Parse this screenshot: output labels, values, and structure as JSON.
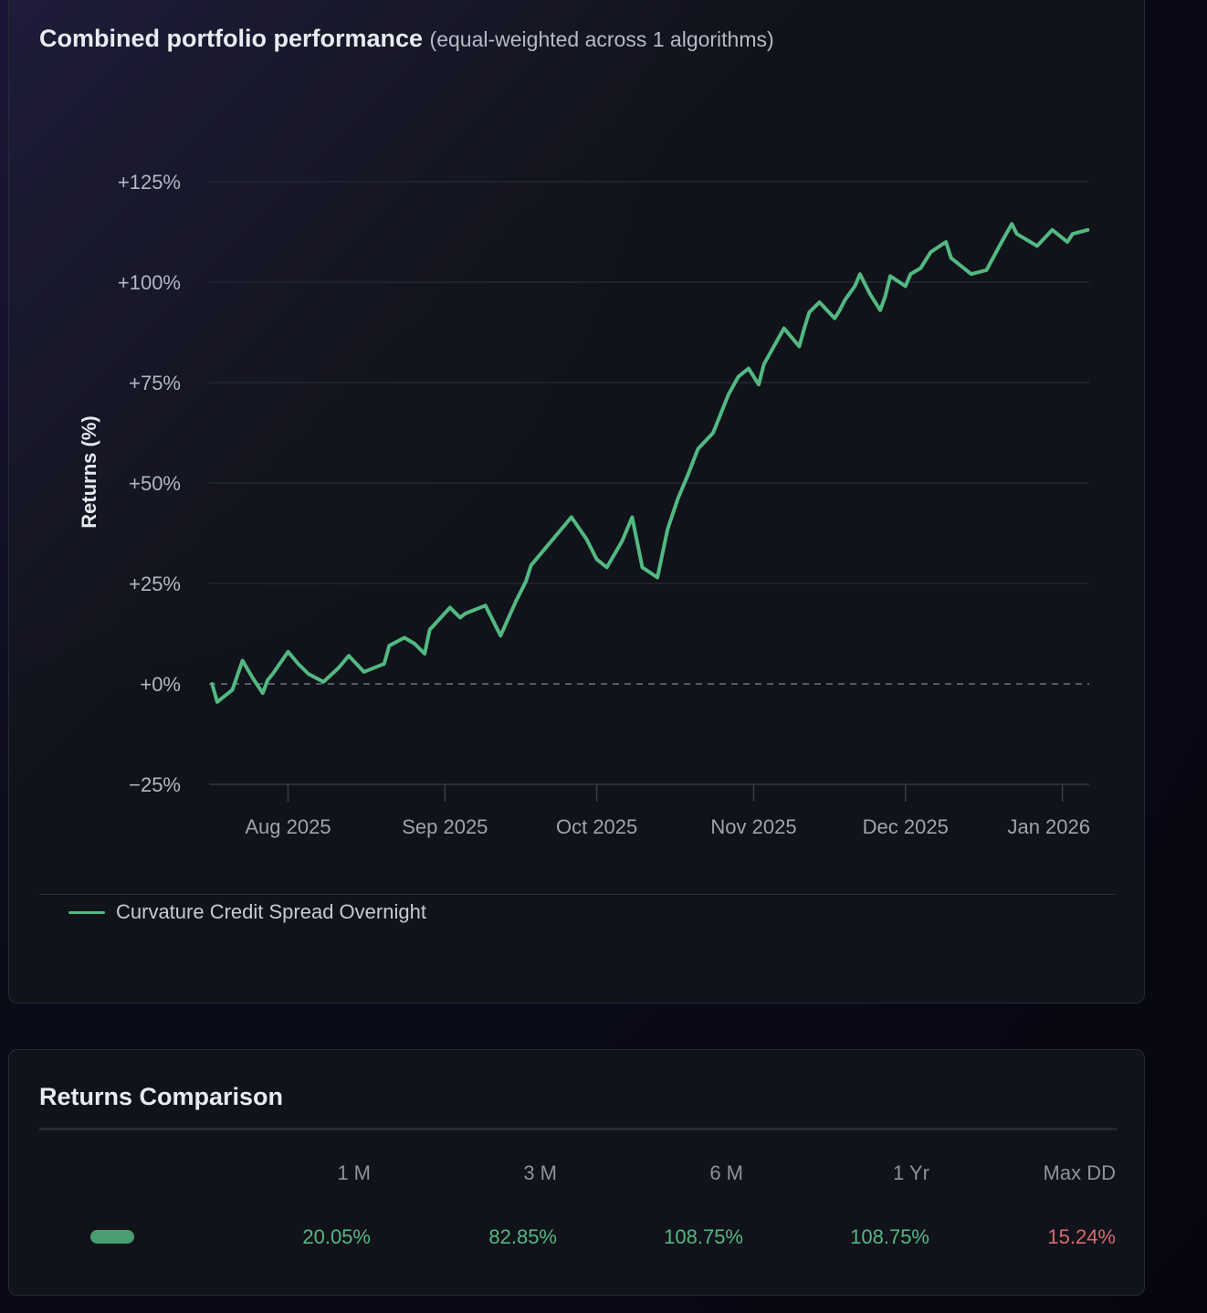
{
  "performance": {
    "title": "Combined portfolio performance",
    "subtitle": "(equal-weighted across 1 algorithms)",
    "legend": [
      {
        "name": "Curvature Credit Spread Overnight",
        "color": "#52b982"
      }
    ]
  },
  "chart_data": {
    "type": "line",
    "ylabel": "Returns (%)",
    "xlabel": "",
    "ylim": [
      -25,
      125
    ],
    "yticks": [
      -25,
      0,
      25,
      50,
      75,
      100,
      125
    ],
    "ytick_labels": [
      "−25%",
      "+0%",
      "+25%",
      "+50%",
      "+75%",
      "+100%",
      "+125%"
    ],
    "xlim": [
      "2025-07-17",
      "2026-01-06"
    ],
    "xticks": [
      {
        "date": "2025-08-01",
        "label": "Aug 2025"
      },
      {
        "date": "2025-09-01",
        "label": "Sep 2025"
      },
      {
        "date": "2025-10-01",
        "label": "Oct 2025"
      },
      {
        "date": "2025-11-01",
        "label": "Nov 2025"
      },
      {
        "date": "2025-12-01",
        "label": "Dec 2025"
      },
      {
        "date": "2026-01-01",
        "label": "Jan 2026"
      }
    ],
    "zero_line": "dashed",
    "grid": true,
    "legend_position": "bottom-left",
    "series": [
      {
        "name": "Curvature Credit Spread Overnight",
        "color": "#52b982",
        "x": [
          "2025-07-17",
          "2025-07-18",
          "2025-07-21",
          "2025-07-23",
          "2025-07-25",
          "2025-07-27",
          "2025-07-28",
          "2025-07-29",
          "2025-08-01",
          "2025-08-03",
          "2025-08-05",
          "2025-08-08",
          "2025-08-11",
          "2025-08-13",
          "2025-08-16",
          "2025-08-19",
          "2025-08-20",
          "2025-08-21",
          "2025-08-24",
          "2025-08-26",
          "2025-08-28",
          "2025-08-29",
          "2025-09-02",
          "2025-09-04",
          "2025-09-05",
          "2025-09-09",
          "2025-09-12",
          "2025-09-15",
          "2025-09-17",
          "2025-09-18",
          "2025-09-22",
          "2025-09-26",
          "2025-09-29",
          "2025-10-01",
          "2025-10-03",
          "2025-10-06",
          "2025-10-08",
          "2025-10-10",
          "2025-10-13",
          "2025-10-15",
          "2025-10-17",
          "2025-10-19",
          "2025-10-21",
          "2025-10-24",
          "2025-10-27",
          "2025-10-29",
          "2025-10-31",
          "2025-11-02",
          "2025-11-03",
          "2025-11-05",
          "2025-11-07",
          "2025-11-10",
          "2025-11-11",
          "2025-11-12",
          "2025-11-14",
          "2025-11-17",
          "2025-11-18",
          "2025-11-19",
          "2025-11-21",
          "2025-11-22",
          "2025-11-24",
          "2025-11-26",
          "2025-11-27",
          "2025-11-28",
          "2025-12-01",
          "2025-12-02",
          "2025-12-04",
          "2025-12-05",
          "2025-12-06",
          "2025-12-09",
          "2025-12-10",
          "2025-12-14",
          "2025-12-17",
          "2025-12-20",
          "2025-12-22",
          "2025-12-23",
          "2025-12-27",
          "2025-12-30",
          "2026-01-02",
          "2026-01-03",
          "2026-01-06"
        ],
        "values": [
          0,
          -4.5,
          -1.5,
          5.8,
          1.5,
          -2.3,
          1,
          2.5,
          8,
          5,
          2.5,
          0.5,
          4,
          7,
          3,
          4.5,
          5,
          9.5,
          11.5,
          10,
          7.5,
          13.5,
          19,
          16.5,
          17.5,
          19.5,
          12,
          20.5,
          25.5,
          29.5,
          35.5,
          41.5,
          36,
          31,
          29,
          35.5,
          41.5,
          29,
          26.5,
          38.5,
          46,
          52,
          58.5,
          62.5,
          72,
          76.5,
          78.5,
          74.5,
          79.5,
          84,
          88.5,
          84,
          88.5,
          92.5,
          95,
          91,
          93,
          95.5,
          99,
          102,
          97,
          93,
          96.5,
          101.5,
          99,
          102,
          103.5,
          105.5,
          107.5,
          110,
          106,
          102,
          103,
          110,
          114.5,
          112,
          109,
          113,
          110,
          112,
          113
        ]
      }
    ]
  },
  "returns": {
    "title": "Returns Comparison",
    "columns": [
      "1 M",
      "3 M",
      "6 M",
      "1 Yr",
      "Max DD"
    ],
    "rows": [
      {
        "swatch_color": "#4a9e71",
        "values": [
          "20.05%",
          "82.85%",
          "108.75%",
          "108.75%",
          "15.24%"
        ],
        "value_colors": [
          "#55b784",
          "#55b784",
          "#55b784",
          "#55b784",
          "#d86a6e"
        ]
      }
    ]
  }
}
